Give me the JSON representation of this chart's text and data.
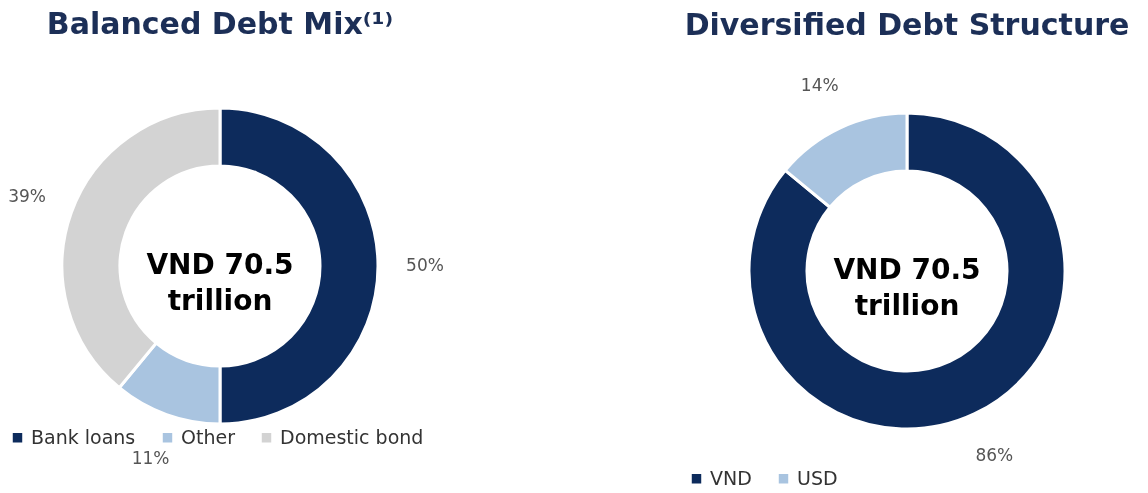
{
  "chart_data": [
    {
      "type": "donut",
      "title": "Balanced Debt Mix⁽¹⁾",
      "categories": [
        "Bank loans",
        "Other",
        "Domestic bond"
      ],
      "values": [
        50,
        11,
        39
      ],
      "colors": [
        "#0d2b5c",
        "#a9c4e0",
        "#d3d3d3"
      ],
      "value_labels": [
        "50%",
        "11%",
        "39%"
      ],
      "annotations": [
        "VND 70.5 trillion"
      ],
      "legend": "bottom left"
    },
    {
      "type": "donut",
      "title": "Diversified Debt Structure",
      "categories": [
        "VND",
        "USD"
      ],
      "values": [
        86,
        14
      ],
      "colors": [
        "#0d2b5c",
        "#a9c4e0"
      ],
      "value_labels": [
        "86%",
        "14%"
      ],
      "annotations": [
        "VND 70.5 trillion"
      ],
      "legend": "bottom"
    }
  ]
}
